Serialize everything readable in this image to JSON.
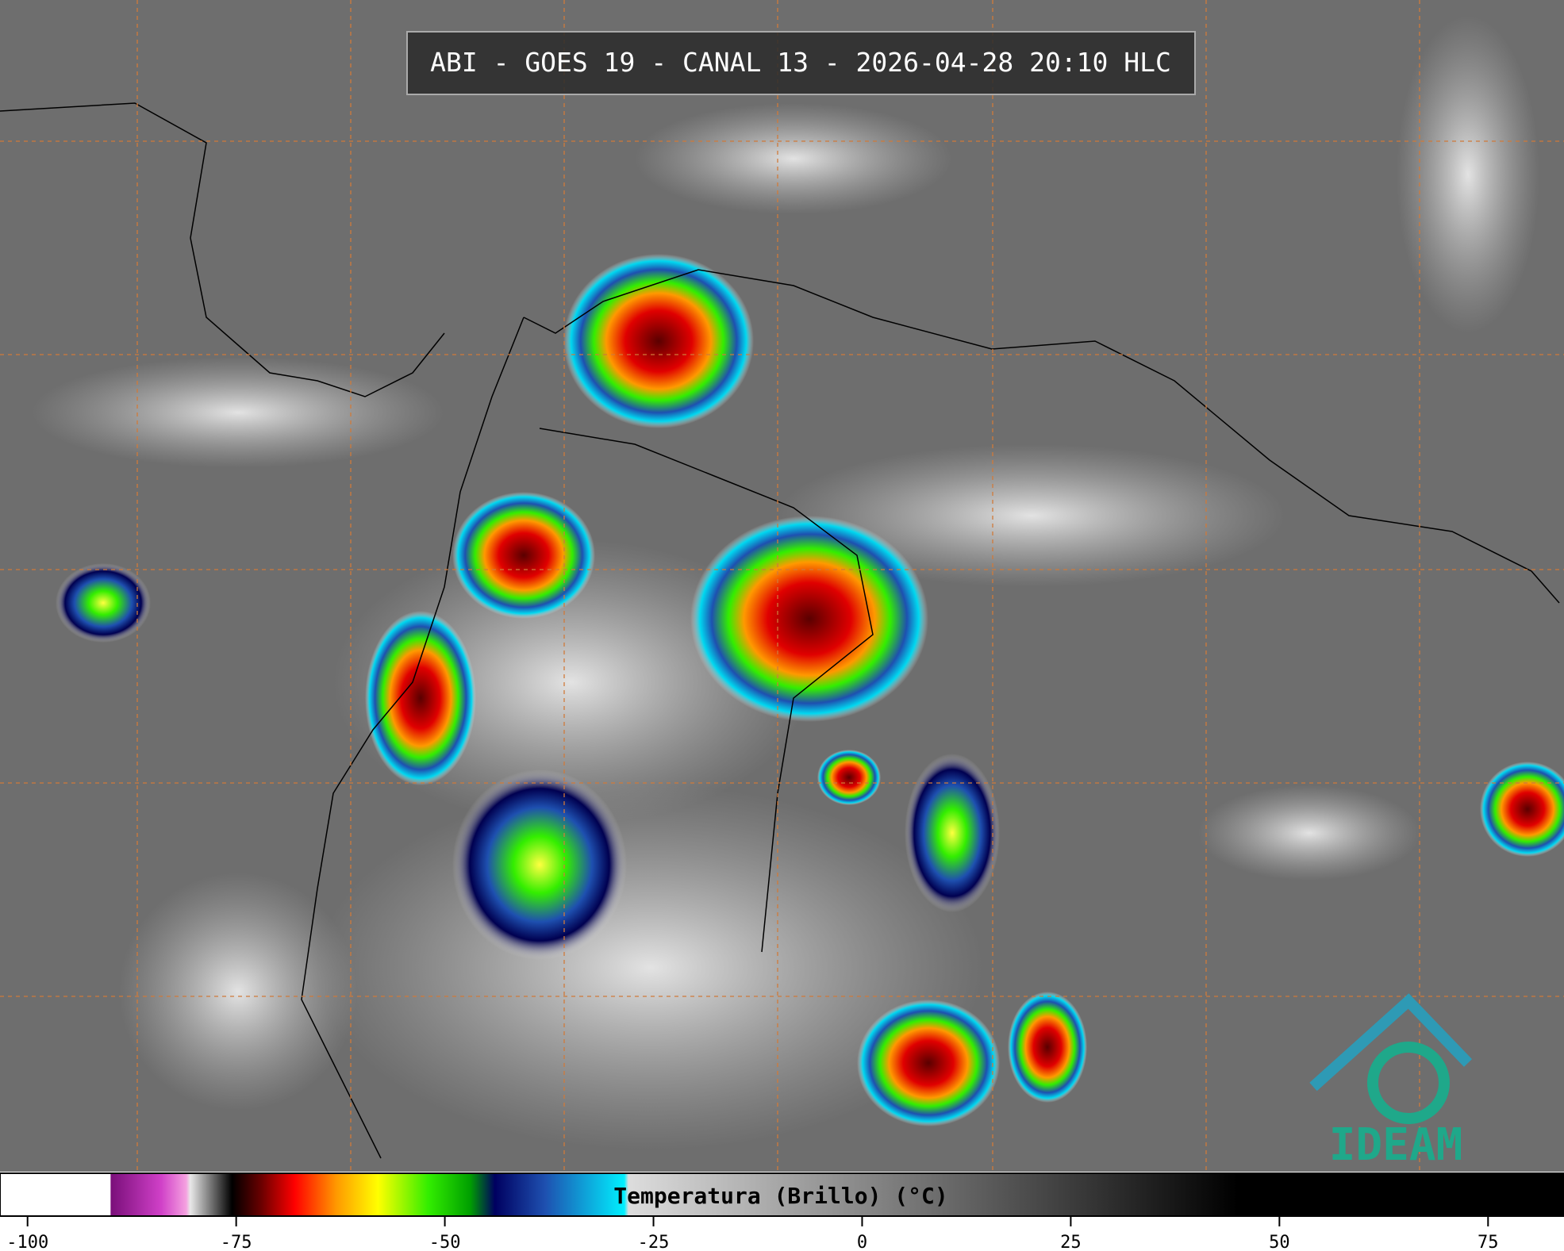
{
  "header": {
    "title": "ABI - GOES 19 - CANAL 13 - 2026-04-28 20:10 HLC"
  },
  "logo": {
    "text": "IDEAM"
  },
  "colorbar": {
    "label": "Temperatura (Brillo) (°C)",
    "xlim": [
      -103.3,
      84.1
    ],
    "xticks": [
      -100,
      -75,
      -50,
      -25,
      0,
      25,
      50,
      75
    ],
    "colormap": [
      {
        "value": -103.3,
        "color": "#ffffff"
      },
      {
        "value": -90.1,
        "color": "#ffffff"
      },
      {
        "value": -90,
        "color": "#7a0f7a"
      },
      {
        "value": -84,
        "color": "#d040c8"
      },
      {
        "value": -81,
        "color": "#f5a0e0"
      },
      {
        "value": -80.5,
        "color": "#e8e8e8"
      },
      {
        "value": -75.5,
        "color": "#000000"
      },
      {
        "value": -72,
        "color": "#6a0000"
      },
      {
        "value": -68,
        "color": "#ff0000"
      },
      {
        "value": -63,
        "color": "#ff9900"
      },
      {
        "value": -58,
        "color": "#ffff00"
      },
      {
        "value": -52,
        "color": "#33ee00"
      },
      {
        "value": -47,
        "color": "#00a000"
      },
      {
        "value": -44,
        "color": "#000060"
      },
      {
        "value": -38,
        "color": "#1e50b0"
      },
      {
        "value": -28.5,
        "color": "#00f0ff"
      },
      {
        "value": -28,
        "color": "#dddddd"
      },
      {
        "value": 45,
        "color": "#000000"
      },
      {
        "value": 84.1,
        "color": "#000000"
      }
    ]
  }
}
